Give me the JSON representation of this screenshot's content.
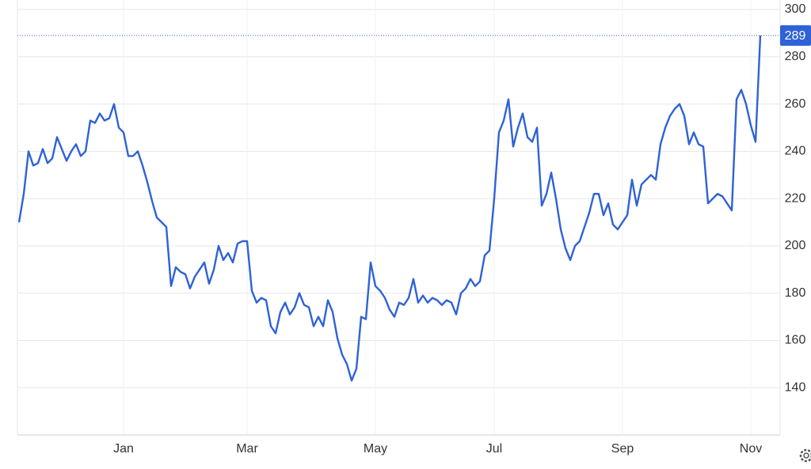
{
  "chart_data": {
    "type": "line",
    "categories": [
      null,
      null,
      null,
      null,
      null,
      null,
      null,
      null,
      null,
      null,
      null,
      null,
      null,
      null,
      null,
      null,
      null,
      null,
      null,
      null,
      null,
      null,
      "Jan",
      null,
      null,
      null,
      null,
      null,
      null,
      null,
      null,
      null,
      null,
      null,
      null,
      null,
      null,
      null,
      null,
      null,
      null,
      null,
      null,
      null,
      null,
      null,
      null,
      null,
      "Mar",
      null,
      null,
      null,
      null,
      null,
      null,
      null,
      null,
      null,
      null,
      null,
      null,
      null,
      null,
      null,
      null,
      null,
      null,
      null,
      null,
      null,
      null,
      null,
      null,
      null,
      null,
      "May",
      null,
      null,
      null,
      null,
      null,
      null,
      null,
      null,
      null,
      null,
      null,
      null,
      null,
      null,
      null,
      null,
      null,
      null,
      null,
      null,
      null,
      null,
      null,
      null,
      "Jul",
      null,
      null,
      null,
      null,
      null,
      null,
      null,
      null,
      null,
      null,
      null,
      null,
      null,
      null,
      null,
      null,
      null,
      null,
      null,
      null,
      null,
      null,
      null,
      null,
      null,
      null,
      "Sep",
      null,
      null,
      null,
      null,
      null,
      null,
      null,
      null,
      null,
      null,
      null,
      null,
      null,
      null,
      null,
      null,
      null,
      null,
      null,
      null,
      null,
      null,
      null,
      null,
      null,
      null,
      "Nov",
      null,
      null
    ],
    "values": [
      210,
      222,
      240,
      234,
      235,
      241,
      235,
      237,
      246,
      241,
      236,
      240,
      243,
      238,
      240,
      253,
      252,
      256,
      253,
      254,
      260,
      250,
      248,
      238,
      238,
      240,
      234,
      227,
      219,
      212,
      210,
      208,
      183,
      191,
      189,
      188,
      182,
      187,
      190,
      193,
      184,
      190,
      200,
      194,
      197,
      193,
      201,
      202,
      202,
      181,
      176,
      178,
      177,
      166,
      163,
      172,
      176,
      171,
      174,
      180,
      175,
      174,
      166,
      170,
      166,
      177,
      172,
      161,
      154,
      150,
      143,
      148,
      170,
      169,
      193,
      183,
      181,
      178,
      173,
      170,
      176,
      175,
      178,
      186,
      176,
      179,
      176,
      178,
      177,
      175,
      177,
      176,
      171,
      180,
      182,
      186,
      183,
      185,
      196,
      198,
      220,
      248,
      253,
      262,
      242,
      250,
      256,
      246,
      244,
      250,
      217,
      222,
      231,
      220,
      207,
      199,
      194,
      200,
      202,
      208,
      214,
      222,
      222,
      213,
      218,
      209,
      207,
      210,
      213,
      228,
      217,
      226,
      228,
      230,
      228,
      243,
      250,
      255,
      258,
      260,
      255,
      243,
      248,
      243,
      242,
      218,
      220,
      222,
      221,
      218,
      215,
      262,
      266,
      260,
      251,
      244,
      289
    ],
    "color": "#2f62d6",
    "ylim": [
      120,
      300
    ],
    "yticks": [
      140,
      160,
      180,
      200,
      220,
      240,
      260,
      280,
      300
    ],
    "grid": true
  }
}
